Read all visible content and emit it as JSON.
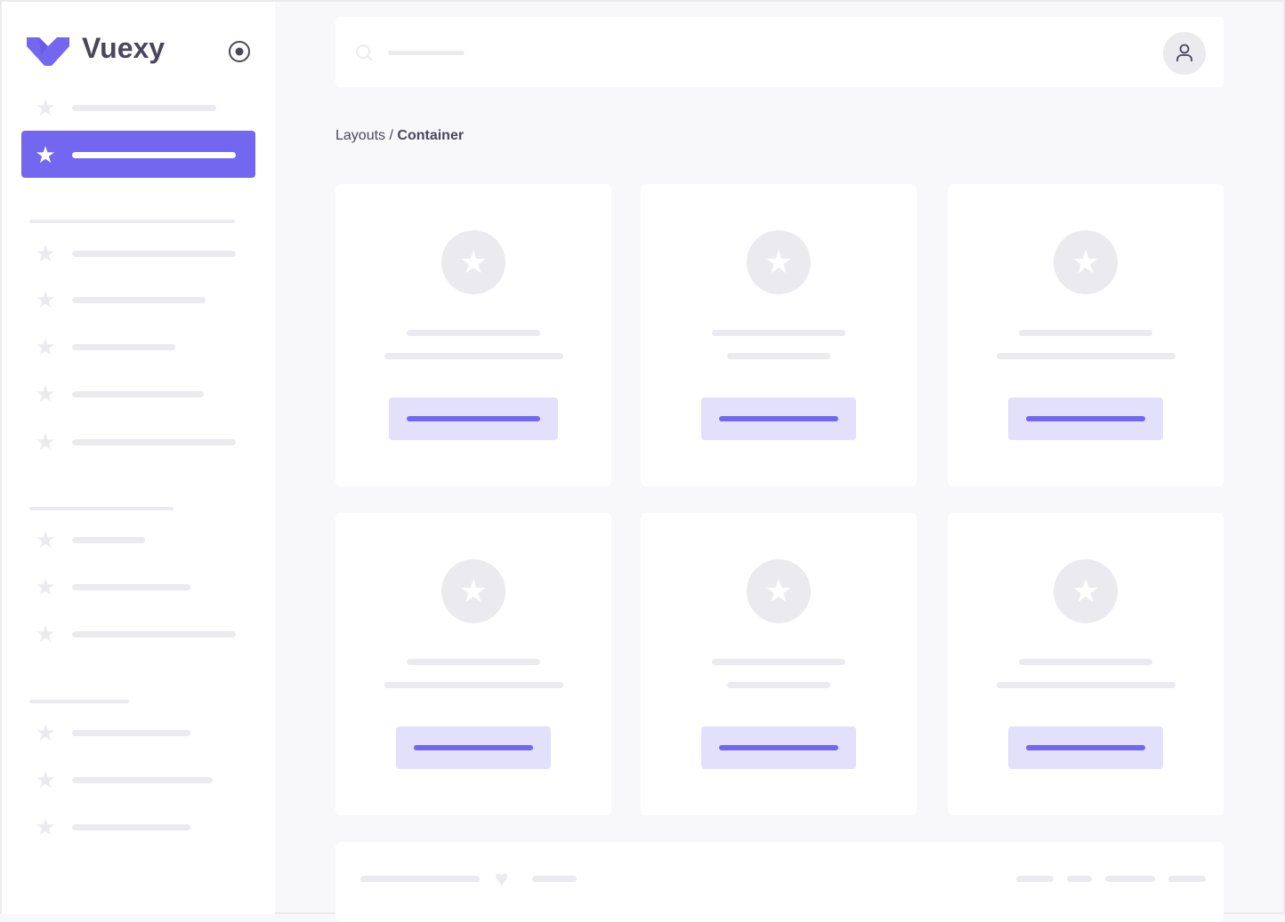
{
  "brand": {
    "name": "Vuexy",
    "color": "#7367f0",
    "logo_icon": "vuexy-logo",
    "toggle_icon": "radio-target-icon"
  },
  "sidebar": {
    "active_index": 1,
    "item_icon": "star-icon"
  },
  "header": {
    "search_icon": "search-icon",
    "avatar_icon": "user-icon"
  },
  "breadcrumb": {
    "parent": "Layouts",
    "separator": "/",
    "current": "Container"
  },
  "cards": {
    "count": 6,
    "icon": "star-icon"
  },
  "footer": {
    "icon": "heart-icon"
  }
}
